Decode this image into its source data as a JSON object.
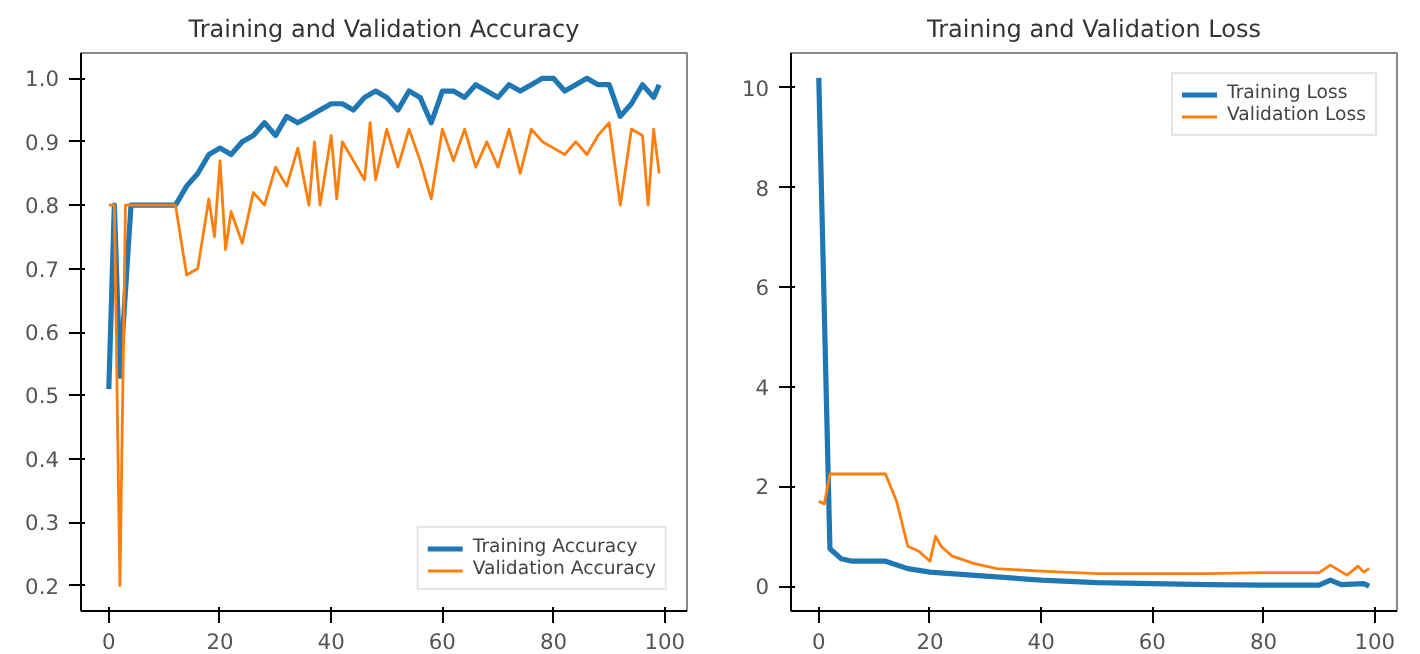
{
  "chart_data": [
    {
      "type": "line",
      "title": "Training and Validation Accuracy",
      "xlim": [
        -5,
        104
      ],
      "ylim": [
        0.16,
        1.04
      ],
      "xticks": [
        0,
        20,
        40,
        60,
        80,
        100
      ],
      "yticks": [
        {
          "value": 0.2,
          "label": "0.2"
        },
        {
          "value": 0.3,
          "label": "0.3"
        },
        {
          "value": 0.4,
          "label": "0.4"
        },
        {
          "value": 0.5,
          "label": "0.5"
        },
        {
          "value": 0.6,
          "label": "0.6"
        },
        {
          "value": 0.7,
          "label": "0.7"
        },
        {
          "value": 0.8,
          "label": "0.8"
        },
        {
          "value": 0.9,
          "label": "0.9"
        },
        {
          "value": 1.0,
          "label": "1.0"
        }
      ],
      "grid": false,
      "legend": "bottom right",
      "series": [
        {
          "name": "Training Accuracy",
          "color": "#1f77b4",
          "x": [
            0,
            1,
            2,
            4,
            12,
            14,
            16,
            18,
            20,
            22,
            24,
            26,
            28,
            30,
            32,
            34,
            36,
            38,
            40,
            42,
            44,
            46,
            48,
            50,
            52,
            54,
            56,
            58,
            60,
            62,
            64,
            66,
            68,
            70,
            72,
            74,
            76,
            78,
            80,
            82,
            84,
            86,
            88,
            90,
            92,
            94,
            96,
            98,
            99
          ],
          "values": [
            0.51,
            0.8,
            0.53,
            0.8,
            0.8,
            0.83,
            0.85,
            0.88,
            0.89,
            0.88,
            0.9,
            0.91,
            0.93,
            0.91,
            0.94,
            0.93,
            0.94,
            0.95,
            0.96,
            0.96,
            0.95,
            0.97,
            0.98,
            0.97,
            0.95,
            0.98,
            0.97,
            0.93,
            0.98,
            0.98,
            0.97,
            0.99,
            0.98,
            0.97,
            0.99,
            0.98,
            0.99,
            1.0,
            1.0,
            0.98,
            0.99,
            1.0,
            0.99,
            0.99,
            0.94,
            0.96,
            0.99,
            0.97,
            0.99
          ]
        },
        {
          "name": "Validation Accuracy",
          "color": "#ff7f0e",
          "x": [
            0,
            1,
            2,
            3,
            12,
            14,
            16,
            18,
            19,
            20,
            21,
            22,
            24,
            26,
            28,
            30,
            32,
            34,
            36,
            37,
            38,
            40,
            41,
            42,
            44,
            46,
            47,
            48,
            50,
            52,
            54,
            56,
            58,
            60,
            62,
            64,
            66,
            68,
            70,
            72,
            74,
            76,
            78,
            80,
            82,
            84,
            86,
            88,
            90,
            92,
            94,
            96,
            97,
            98,
            99
          ],
          "values": [
            0.8,
            0.8,
            0.2,
            0.8,
            0.8,
            0.69,
            0.7,
            0.81,
            0.75,
            0.87,
            0.73,
            0.79,
            0.74,
            0.82,
            0.8,
            0.86,
            0.83,
            0.89,
            0.8,
            0.9,
            0.8,
            0.91,
            0.81,
            0.9,
            0.87,
            0.84,
            0.93,
            0.84,
            0.92,
            0.86,
            0.92,
            0.87,
            0.81,
            0.92,
            0.87,
            0.92,
            0.86,
            0.9,
            0.86,
            0.92,
            0.85,
            0.92,
            0.9,
            0.89,
            0.88,
            0.9,
            0.88,
            0.91,
            0.93,
            0.8,
            0.92,
            0.91,
            0.8,
            0.92,
            0.85
          ]
        }
      ]
    },
    {
      "type": "line",
      "title": "Training and Validation Loss",
      "xlim": [
        -5,
        104
      ],
      "ylim": [
        -0.5,
        10.7
      ],
      "xticks": [
        0,
        20,
        40,
        60,
        80,
        100
      ],
      "yticks": [
        0,
        2,
        4,
        6,
        8,
        10
      ],
      "grid": false,
      "legend": "top right",
      "series": [
        {
          "name": "Training Loss",
          "color": "#1f77b4",
          "x": [
            0,
            2,
            4,
            6,
            12,
            16,
            20,
            30,
            40,
            50,
            60,
            70,
            80,
            90,
            92,
            94,
            98,
            99
          ],
          "values": [
            10.2,
            0.75,
            0.55,
            0.5,
            0.5,
            0.35,
            0.28,
            0.2,
            0.12,
            0.07,
            0.05,
            0.03,
            0.02,
            0.02,
            0.12,
            0.03,
            0.05,
            0.0
          ]
        },
        {
          "name": "Validation Loss",
          "color": "#ff7f0e",
          "x": [
            0,
            1,
            2,
            12,
            14,
            16,
            18,
            20,
            21,
            22,
            24,
            28,
            32,
            40,
            50,
            60,
            70,
            80,
            90,
            92,
            95,
            97,
            98,
            99
          ],
          "values": [
            1.7,
            1.65,
            2.25,
            2.25,
            1.7,
            0.8,
            0.7,
            0.5,
            1.0,
            0.8,
            0.6,
            0.45,
            0.35,
            0.3,
            0.25,
            0.25,
            0.25,
            0.27,
            0.27,
            0.42,
            0.22,
            0.4,
            0.28,
            0.35
          ]
        }
      ]
    }
  ]
}
